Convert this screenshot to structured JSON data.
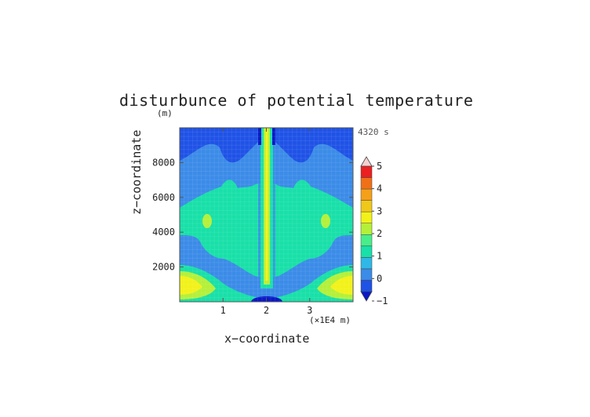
{
  "chart_data": {
    "type": "heatmap",
    "title": "disturbunce of potential temperature",
    "y_unit_label": "(m)",
    "time_label": "4320 s",
    "xlabel": "x−coordinate",
    "ylabel": "z−coordinate",
    "x_unit_label": "(×1E4 m)",
    "xlim": [
      0,
      4
    ],
    "ylim": [
      0,
      10000
    ],
    "x_ticks": [
      1,
      2,
      3
    ],
    "x_tick_labels": [
      "1",
      "2",
      "3"
    ],
    "y_ticks": [
      2000,
      4000,
      6000,
      8000
    ],
    "y_tick_labels": [
      "2000",
      "4000",
      "6000",
      "8000"
    ],
    "colorbar": {
      "levels": [
        -1,
        -0.5,
        0,
        0.5,
        1,
        1.5,
        2,
        2.5,
        3,
        3.5,
        4,
        4.5,
        5
      ],
      "labels": [
        "−1",
        "0",
        "1",
        "2",
        "3",
        "4",
        "5"
      ],
      "colors": [
        "#0a18c8",
        "#1f52e6",
        "#3b8be8",
        "#2fb8e6",
        "#18e0a8",
        "#48ee8a",
        "#b4f03a",
        "#f2f21a",
        "#f0c81a",
        "#f5a019",
        "#f07018",
        "#ec2020",
        "#f49a9a"
      ]
    },
    "features": [
      {
        "name": "warm plume core",
        "x": 2.0,
        "z_range": [
          500,
          10000
        ],
        "value": 2.5
      },
      {
        "name": "cold pool at surface",
        "x": 2.0,
        "z_range": [
          0,
          300
        ],
        "value": -1
      },
      {
        "name": "cool upper layer",
        "x_range": [
          0,
          4
        ],
        "z_range": [
          7000,
          10000
        ],
        "value": -0.5
      },
      {
        "name": "warm mid-level region",
        "x_range": [
          0.6,
          3.4
        ],
        "z_range": [
          1500,
          7000
        ],
        "value": 1.0
      },
      {
        "name": "near-surface warm lobes",
        "x": [
          0.2,
          3.8
        ],
        "z": 600,
        "value": 2.0
      }
    ]
  }
}
